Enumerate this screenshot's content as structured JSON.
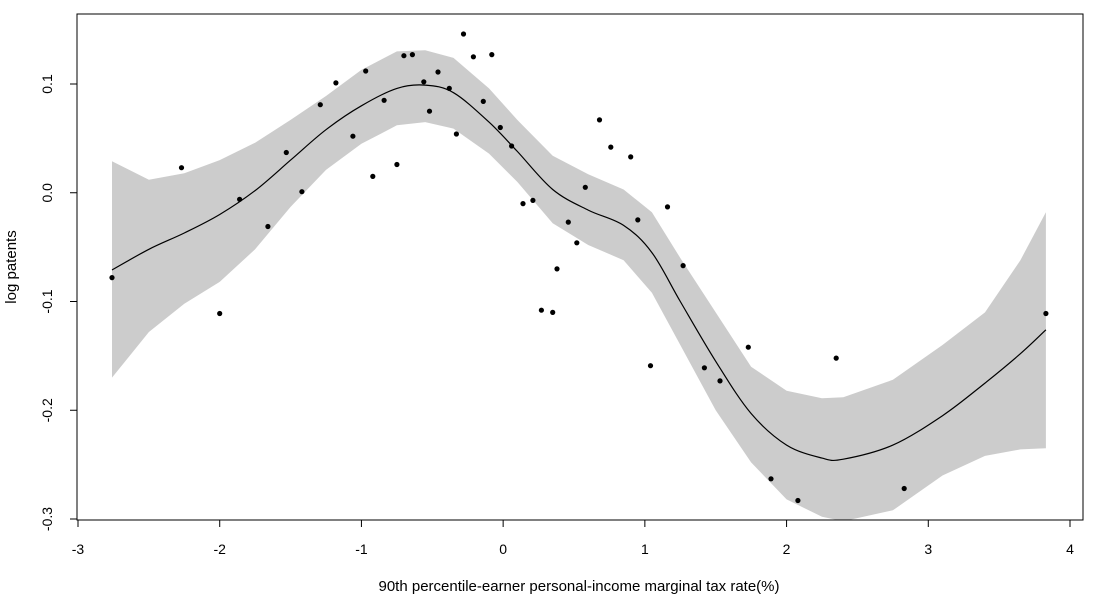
{
  "chart_data": {
    "type": "scatter",
    "title": "",
    "xlabel": "90th percentile-earner personal-income marginal tax rate(%)",
    "ylabel": "log patents",
    "xlim": [
      -3.0,
      4.1
    ],
    "ylim": [
      -0.3,
      0.16
    ],
    "x_ticks": [
      {
        "value": -3,
        "label": "-3"
      },
      {
        "value": -2,
        "label": "-2"
      },
      {
        "value": -1,
        "label": "-1"
      },
      {
        "value": 0,
        "label": "0"
      },
      {
        "value": 1,
        "label": "1"
      },
      {
        "value": 2,
        "label": "2"
      },
      {
        "value": 3,
        "label": "3"
      },
      {
        "value": 4,
        "label": "4"
      }
    ],
    "y_ticks": [
      {
        "value": -0.3,
        "label": "-0.3"
      },
      {
        "value": -0.2,
        "label": "-0.2"
      },
      {
        "value": -0.1,
        "label": "-0.1"
      },
      {
        "value": 0.0,
        "label": "0.0"
      },
      {
        "value": 0.1,
        "label": "0.1"
      }
    ],
    "grid": false,
    "colors": {
      "points": "#000000",
      "fit_line": "#000000",
      "confidence_band": "#cccccc"
    },
    "points": [
      {
        "x": -2.76,
        "y": -0.078
      },
      {
        "x": -2.27,
        "y": 0.023
      },
      {
        "x": -2.0,
        "y": -0.111
      },
      {
        "x": -1.86,
        "y": -0.006
      },
      {
        "x": -1.66,
        "y": -0.031
      },
      {
        "x": -1.53,
        "y": 0.037
      },
      {
        "x": -1.42,
        "y": 0.001
      },
      {
        "x": -1.29,
        "y": 0.081
      },
      {
        "x": -1.18,
        "y": 0.101
      },
      {
        "x": -1.06,
        "y": 0.052
      },
      {
        "x": -0.97,
        "y": 0.112
      },
      {
        "x": -0.92,
        "y": 0.015
      },
      {
        "x": -0.84,
        "y": 0.085
      },
      {
        "x": -0.75,
        "y": 0.026
      },
      {
        "x": -0.7,
        "y": 0.126
      },
      {
        "x": -0.64,
        "y": 0.127
      },
      {
        "x": -0.56,
        "y": 0.102
      },
      {
        "x": -0.52,
        "y": 0.075
      },
      {
        "x": -0.46,
        "y": 0.111
      },
      {
        "x": -0.38,
        "y": 0.096
      },
      {
        "x": -0.33,
        "y": 0.054
      },
      {
        "x": -0.28,
        "y": 0.146
      },
      {
        "x": -0.21,
        "y": 0.125
      },
      {
        "x": -0.14,
        "y": 0.084
      },
      {
        "x": -0.08,
        "y": 0.127
      },
      {
        "x": -0.02,
        "y": 0.06
      },
      {
        "x": 0.06,
        "y": 0.043
      },
      {
        "x": 0.14,
        "y": -0.01
      },
      {
        "x": 0.21,
        "y": -0.007
      },
      {
        "x": 0.27,
        "y": -0.108
      },
      {
        "x": 0.35,
        "y": -0.11
      },
      {
        "x": 0.38,
        "y": -0.07
      },
      {
        "x": 0.46,
        "y": -0.027
      },
      {
        "x": 0.52,
        "y": -0.046
      },
      {
        "x": 0.58,
        "y": 0.005
      },
      {
        "x": 0.68,
        "y": 0.067
      },
      {
        "x": 0.76,
        "y": 0.042
      },
      {
        "x": 0.9,
        "y": 0.033
      },
      {
        "x": 0.95,
        "y": -0.025
      },
      {
        "x": 1.04,
        "y": -0.159
      },
      {
        "x": 1.16,
        "y": -0.013
      },
      {
        "x": 1.27,
        "y": -0.067
      },
      {
        "x": 1.42,
        "y": -0.161
      },
      {
        "x": 1.53,
        "y": -0.173
      },
      {
        "x": 1.73,
        "y": -0.142
      },
      {
        "x": 1.89,
        "y": -0.263
      },
      {
        "x": 2.08,
        "y": -0.283
      },
      {
        "x": 2.35,
        "y": -0.152
      },
      {
        "x": 2.83,
        "y": -0.272
      },
      {
        "x": 3.83,
        "y": -0.111
      }
    ],
    "fit": [
      {
        "x": -2.76,
        "y": -0.071,
        "lo": -0.17,
        "hi": 0.029
      },
      {
        "x": -2.5,
        "y": -0.052,
        "lo": -0.128,
        "hi": 0.012
      },
      {
        "x": -2.25,
        "y": -0.037,
        "lo": -0.102,
        "hi": 0.018
      },
      {
        "x": -2.0,
        "y": -0.02,
        "lo": -0.082,
        "hi": 0.03
      },
      {
        "x": -1.75,
        "y": 0.002,
        "lo": -0.052,
        "hi": 0.046
      },
      {
        "x": -1.5,
        "y": 0.03,
        "lo": -0.013,
        "hi": 0.067
      },
      {
        "x": -1.25,
        "y": 0.058,
        "lo": 0.021,
        "hi": 0.089
      },
      {
        "x": -1.0,
        "y": 0.08,
        "lo": 0.045,
        "hi": 0.113
      },
      {
        "x": -0.75,
        "y": 0.096,
        "lo": 0.062,
        "hi": 0.13
      },
      {
        "x": -0.55,
        "y": 0.099,
        "lo": 0.065,
        "hi": 0.131
      },
      {
        "x": -0.35,
        "y": 0.092,
        "lo": 0.059,
        "hi": 0.124
      },
      {
        "x": -0.1,
        "y": 0.065,
        "lo": 0.036,
        "hi": 0.096
      },
      {
        "x": 0.1,
        "y": 0.038,
        "lo": 0.01,
        "hi": 0.067
      },
      {
        "x": 0.35,
        "y": 0.003,
        "lo": -0.028,
        "hi": 0.034
      },
      {
        "x": 0.6,
        "y": -0.016,
        "lo": -0.048,
        "hi": 0.017
      },
      {
        "x": 0.85,
        "y": -0.03,
        "lo": -0.062,
        "hi": 0.003
      },
      {
        "x": 1.05,
        "y": -0.055,
        "lo": -0.092,
        "hi": -0.018
      },
      {
        "x": 1.25,
        "y": -0.1,
        "lo": -0.14,
        "hi": -0.06
      },
      {
        "x": 1.5,
        "y": -0.155,
        "lo": -0.2,
        "hi": -0.11
      },
      {
        "x": 1.75,
        "y": -0.203,
        "lo": -0.248,
        "hi": -0.16
      },
      {
        "x": 2.0,
        "y": -0.232,
        "lo": -0.282,
        "hi": -0.182
      },
      {
        "x": 2.25,
        "y": -0.244,
        "lo": -0.298,
        "hi": -0.189
      },
      {
        "x": 2.4,
        "y": -0.245,
        "lo": -0.302,
        "hi": -0.188
      },
      {
        "x": 2.75,
        "y": -0.232,
        "lo": -0.292,
        "hi": -0.172
      },
      {
        "x": 3.1,
        "y": -0.205,
        "lo": -0.26,
        "hi": -0.14
      },
      {
        "x": 3.4,
        "y": -0.175,
        "lo": -0.242,
        "hi": -0.11
      },
      {
        "x": 3.65,
        "y": -0.148,
        "lo": -0.236,
        "hi": -0.062
      },
      {
        "x": 3.83,
        "y": -0.126,
        "lo": -0.235,
        "hi": -0.018
      }
    ]
  }
}
